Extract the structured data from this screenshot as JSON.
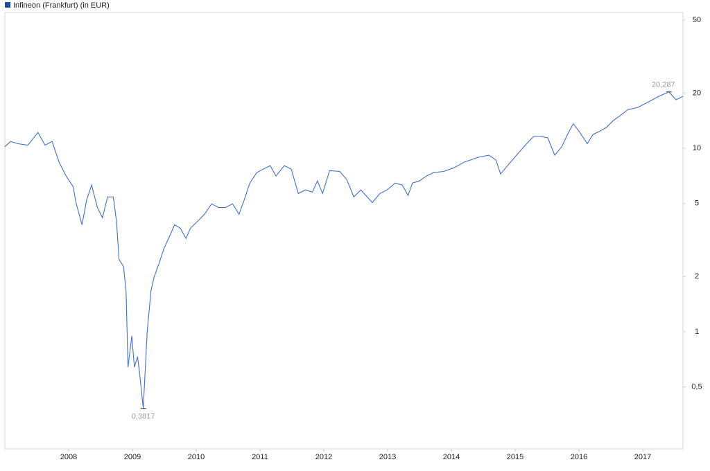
{
  "chart_data": {
    "type": "line",
    "log_y": true,
    "grid": false,
    "legend": "top-left",
    "x": [
      2007.0,
      2007.09,
      2007.2,
      2007.36,
      2007.52,
      2007.63,
      2007.74,
      2007.85,
      2007.96,
      2008.07,
      2008.12,
      2008.21,
      2008.28,
      2008.36,
      2008.45,
      2008.53,
      2008.61,
      2008.7,
      2008.75,
      2008.79,
      2008.86,
      2008.9,
      2008.93,
      2008.99,
      2009.03,
      2009.08,
      2009.12,
      2009.17,
      2009.23,
      2009.29,
      2009.34,
      2009.42,
      2009.49,
      2009.59,
      2009.66,
      2009.75,
      2009.84,
      2009.91,
      2010.02,
      2010.13,
      2010.24,
      2010.35,
      2010.46,
      2010.57,
      2010.67,
      2010.75,
      2010.84,
      2010.95,
      2011.05,
      2011.16,
      2011.25,
      2011.38,
      2011.49,
      2011.6,
      2011.71,
      2011.82,
      2011.9,
      2011.98,
      2012.09,
      2012.25,
      2012.36,
      2012.47,
      2012.58,
      2012.68,
      2012.76,
      2012.88,
      2012.99,
      2013.12,
      2013.23,
      2013.32,
      2013.39,
      2013.5,
      2013.61,
      2013.72,
      2013.88,
      2014.04,
      2014.21,
      2014.42,
      2014.59,
      2014.7,
      2014.77,
      2014.88,
      2015.02,
      2015.18,
      2015.29,
      2015.4,
      2015.51,
      2015.62,
      2015.73,
      2015.82,
      2015.91,
      2016.0,
      2016.13,
      2016.22,
      2016.33,
      2016.43,
      2016.54,
      2016.65,
      2016.76,
      2016.92,
      2017.09,
      2017.25,
      2017.41,
      2017.52,
      2017.63
    ],
    "series": [
      {
        "name": "Infineon (Frankfurt) (in EUR)",
        "color": "#3b6fd1",
        "values": [
          10.2,
          10.9,
          10.6,
          10.4,
          12.2,
          10.4,
          10.9,
          8.4,
          7.06,
          6.19,
          4.98,
          3.83,
          5.2,
          6.3,
          4.76,
          4.18,
          5.43,
          5.43,
          4.0,
          2.48,
          2.27,
          1.67,
          0.641,
          0.949,
          0.641,
          0.731,
          0.562,
          0.3817,
          0.99,
          1.67,
          1.99,
          2.37,
          2.82,
          3.36,
          3.83,
          3.67,
          3.22,
          3.67,
          4.0,
          4.37,
          4.98,
          4.76,
          4.76,
          4.98,
          4.37,
          5.2,
          6.47,
          7.37,
          7.7,
          8.04,
          7.06,
          8.04,
          7.7,
          5.67,
          5.93,
          5.77,
          6.64,
          5.67,
          7.56,
          7.48,
          6.75,
          5.43,
          5.93,
          5.43,
          5.06,
          5.67,
          5.93,
          6.47,
          6.3,
          5.53,
          6.47,
          6.64,
          7.06,
          7.37,
          7.48,
          7.83,
          8.43,
          8.93,
          9.17,
          8.62,
          7.24,
          8.04,
          9.17,
          10.6,
          11.6,
          11.6,
          11.4,
          9.17,
          10.2,
          11.9,
          13.6,
          12.4,
          10.6,
          11.9,
          12.4,
          13.0,
          14.2,
          15.1,
          16.2,
          16.7,
          17.9,
          19.2,
          20.287,
          18.4,
          19.2
        ],
        "value_labels": [
          null,
          null,
          null,
          null,
          null,
          null,
          null,
          null,
          null,
          null,
          null,
          null,
          null,
          null,
          null,
          null,
          null,
          null,
          null,
          null,
          null,
          null,
          null,
          null,
          null,
          null,
          null,
          "0,3817",
          null,
          null,
          null,
          null,
          null,
          null,
          null,
          null,
          null,
          null,
          null,
          null,
          null,
          null,
          null,
          null,
          null,
          null,
          null,
          null,
          null,
          null,
          null,
          null,
          null,
          null,
          null,
          null,
          null,
          null,
          null,
          null,
          null,
          null,
          null,
          null,
          null,
          null,
          null,
          null,
          null,
          null,
          null,
          null,
          null,
          null,
          null,
          null,
          null,
          null,
          null,
          null,
          null,
          null,
          null,
          null,
          null,
          null,
          null,
          null,
          null,
          null,
          null,
          null,
          null,
          null,
          null,
          null,
          null,
          null,
          null,
          null,
          null,
          null,
          "20,287",
          null,
          null
        ]
      }
    ],
    "xlim": [
      2007.0,
      2017.63
    ],
    "xticks": [
      2008,
      2009,
      2010,
      2011,
      2012,
      2013,
      2014,
      2015,
      2016,
      2017
    ],
    "ylim": [
      0.23,
      55
    ],
    "yticks": [
      {
        "value": 0.5,
        "label": "0,5"
      },
      1,
      2,
      5,
      10,
      20,
      50
    ]
  }
}
